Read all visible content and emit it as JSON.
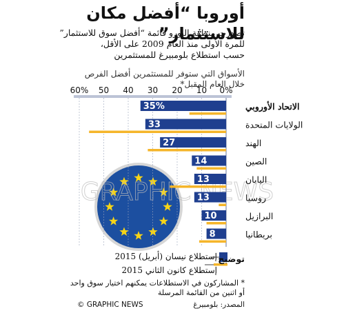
{
  "header": {
    "title": "أوروبا “أفضل مكان للاستثمار”",
    "subtitle_lines": [
      "تصدرت منطقة اليورو قائمة “أفضل سوق للاستثمار”",
      "للمرة الأولى منذ العام 2009 على الأقل،",
      "حسب استطلاع بلومبيرغ للمستثمرين"
    ]
  },
  "chart_heading_lines": [
    "الأسواق التي ستوفر للمستثمرين أفضل الفرص",
    "خلال العام المقبل*"
  ],
  "legend": {
    "label": "توضيح",
    "current": "إستطلاع نيسان (أبريل) 2015",
    "previous": "إستطلاع كانون الثاني 2015"
  },
  "footnote_lines": [
    "* المشاركون في الاستطلاعات يمكنهم اختيار سوق واحد",
    "أو اثنين من القائمة المرسلة"
  ],
  "source": "المصدر: بلومبيرغ",
  "credit": "© GRAPHIC NEWS",
  "watermark": "GRAPHIC NEWS",
  "colors": {
    "current_bar": "#1f3f8f",
    "previous_bar": "#f5b52a",
    "axis_band": "#bcc3d6",
    "flag_blue": "#1c4fa0",
    "flag_star": "#f7d417"
  },
  "chart_data": {
    "type": "bar",
    "orientation": "horizontal",
    "direction": "right-to-left",
    "categories": [
      "الاتحاد الأوروبي",
      "الولايات المتحدة",
      "الهند",
      "الصين",
      "اليابان",
      "روسيا",
      "البرازيل",
      "بريطانيا"
    ],
    "series": [
      {
        "name": "إستطلاع نيسان (أبريل) 2015",
        "values": [
          35,
          33,
          27,
          14,
          13,
          13,
          10,
          8
        ],
        "labels": [
          "35%",
          "33",
          "27",
          "14",
          "13",
          "13",
          "10",
          "8"
        ]
      },
      {
        "name": "إستطلاع كانون الثاني 2015",
        "values": [
          15,
          56,
          32,
          12,
          23,
          3,
          8,
          11
        ]
      }
    ],
    "xlim": [
      0,
      60
    ],
    "ticks": [
      0,
      10,
      20,
      30,
      40,
      50,
      60
    ],
    "tick_labels": [
      "0%",
      "10",
      "20",
      "30",
      "40",
      "50",
      "60%"
    ],
    "grid": true
  }
}
